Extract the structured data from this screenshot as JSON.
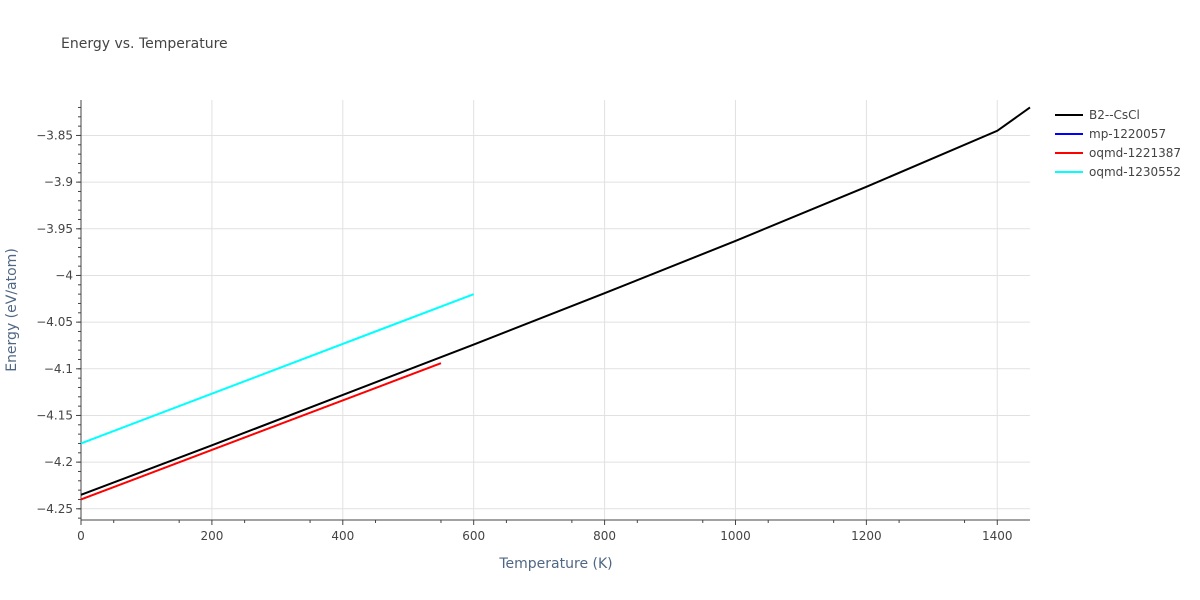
{
  "chart_data": {
    "type": "line",
    "title": "Energy vs. Temperature",
    "xlabel": "Temperature (K)",
    "ylabel": "Energy (eV/atom)",
    "xlim": [
      0,
      1450
    ],
    "ylim": [
      -4.262,
      -3.812
    ],
    "x_ticks": [
      0,
      200,
      400,
      600,
      800,
      1000,
      1200,
      1400
    ],
    "x_tick_labels": [
      "0",
      "200",
      "400",
      "600",
      "800",
      "1000",
      "1200",
      "1400"
    ],
    "y_ticks": [
      -4.25,
      -4.2,
      -4.15,
      -4.1,
      -4.05,
      -4.0,
      -3.95,
      -3.9,
      -3.85
    ],
    "y_tick_labels": [
      "−4.25",
      "−4.2",
      "−4.15",
      "−4.1",
      "−4.05",
      "−4",
      "−3.95",
      "−3.9",
      "−3.85"
    ],
    "grid": true,
    "legend_position": "top-right",
    "series": [
      {
        "name": "B2--CsCl",
        "color": "#000000",
        "x": [
          0,
          200,
          400,
          600,
          800,
          1000,
          1200,
          1400,
          1450
        ],
        "y": [
          -4.235,
          -4.182,
          -4.128,
          -4.074,
          -4.019,
          -3.963,
          -3.905,
          -3.845,
          -3.82
        ]
      },
      {
        "name": "mp-1220057",
        "color": "#0000ff",
        "x": [],
        "y": []
      },
      {
        "name": "oqmd-1221387",
        "color": "#ff0000",
        "x": [
          0,
          550
        ],
        "y": [
          -4.24,
          -4.094
        ]
      },
      {
        "name": "oqmd-1230552",
        "color": "#00ffff",
        "x": [
          0,
          600
        ],
        "y": [
          -4.18,
          -4.02
        ]
      }
    ]
  }
}
